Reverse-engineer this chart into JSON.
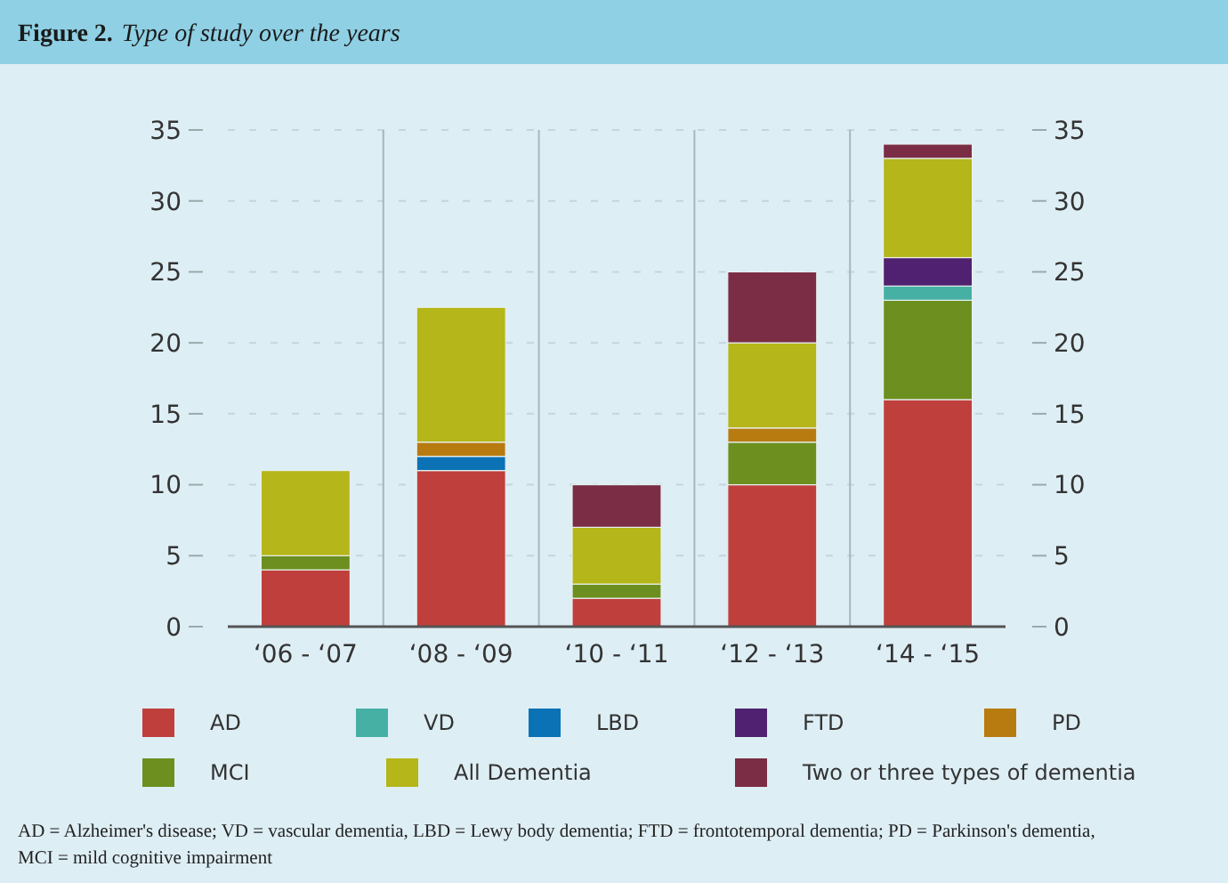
{
  "chart_data": {
    "type": "bar",
    "stacked": true,
    "title": "Figure 2.",
    "subtitle": "Type of study over the years",
    "categories": [
      "‘06 - ‘07",
      "‘08 - ‘09",
      "‘10 - ‘11",
      "‘12 - ‘13",
      "‘14 - ‘15"
    ],
    "series": [
      {
        "name": "AD",
        "color": "#bf3f3d",
        "values": [
          4,
          11,
          2,
          10,
          16
        ]
      },
      {
        "name": "MCI",
        "color": "#6c8f1f",
        "values": [
          1,
          0,
          1,
          3,
          7
        ]
      },
      {
        "name": "VD",
        "color": "#47b0a5",
        "values": [
          0,
          0,
          0,
          0,
          1
        ]
      },
      {
        "name": "LBD",
        "color": "#0a72b5",
        "values": [
          0,
          1,
          0,
          0,
          0
        ]
      },
      {
        "name": "FTD",
        "color": "#4f2170",
        "values": [
          0,
          0,
          0,
          0,
          2
        ]
      },
      {
        "name": "PD",
        "color": "#b87b10",
        "values": [
          0,
          1,
          0,
          1,
          0
        ]
      },
      {
        "name": "All Dementia",
        "color": "#b5b619",
        "values": [
          6,
          9.5,
          4,
          6,
          7
        ]
      },
      {
        "name": "Two or three types of dementia",
        "color": "#7a2d44",
        "values": [
          0,
          0,
          3,
          5,
          1
        ]
      }
    ],
    "ylim": [
      0,
      35
    ],
    "yticks": [
      0,
      5,
      10,
      15,
      20,
      25,
      30,
      35
    ],
    "y2lim": [
      0,
      35
    ],
    "y2ticks": [
      0,
      5,
      10,
      15,
      20,
      25,
      30,
      35
    ],
    "grid": true,
    "legend": "bottom",
    "annotations": [
      "AD = Alzheimer's disease; VD = vascular dementia, LBD = Lewy body dementia; FTD = frontotemporal dementia; PD = Parkinson's dementia,",
      "MCI = mild cognitive impairment"
    ]
  }
}
